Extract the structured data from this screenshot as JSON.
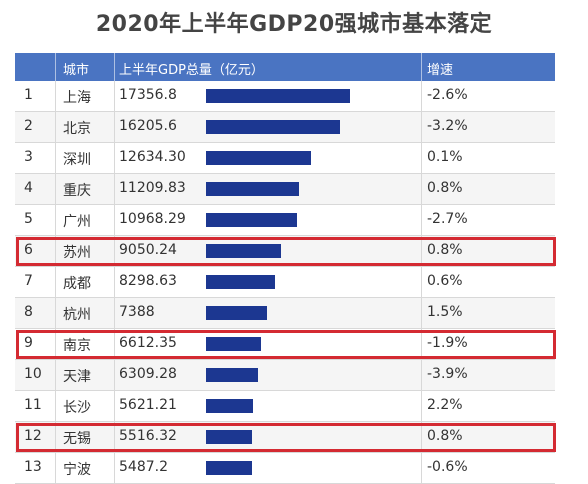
{
  "title": "2020年上半年GDP20强城市基本落定",
  "headers": {
    "rank": "",
    "city": "城市",
    "value": "上半年GDP总量（亿元）",
    "bar": "",
    "growth": "增速"
  },
  "colors": {
    "header_bg": "#4a74c2",
    "bar": "#1c3791",
    "highlight": "#d42a32"
  },
  "highlighted_ranks": [
    6,
    9,
    12
  ],
  "chart_data": {
    "type": "bar",
    "title": "2020年上半年GDP20强城市基本落定",
    "value_label": "上半年GDP总量（亿元）",
    "grid": false,
    "rows": [
      {
        "rank": "1",
        "city": "上海",
        "value_text": "17356.8",
        "value": 17356.8,
        "growth": "-2.6%"
      },
      {
        "rank": "2",
        "city": "北京",
        "value_text": "16205.6",
        "value": 16205.6,
        "growth": "-3.2%"
      },
      {
        "rank": "3",
        "city": "深圳",
        "value_text": "12634.30",
        "value": 12634.3,
        "growth": "0.1%"
      },
      {
        "rank": "4",
        "city": "重庆",
        "value_text": "11209.83",
        "value": 11209.83,
        "growth": "0.8%"
      },
      {
        "rank": "5",
        "city": "广州",
        "value_text": "10968.29",
        "value": 10968.29,
        "growth": "-2.7%"
      },
      {
        "rank": "6",
        "city": "苏州",
        "value_text": "9050.24",
        "value": 9050.24,
        "growth": "0.8%"
      },
      {
        "rank": "7",
        "city": "成都",
        "value_text": "8298.63",
        "value": 8298.63,
        "growth": "0.6%"
      },
      {
        "rank": "8",
        "city": "杭州",
        "value_text": "7388",
        "value": 7388,
        "growth": "1.5%"
      },
      {
        "rank": "9",
        "city": "南京",
        "value_text": "6612.35",
        "value": 6612.35,
        "growth": "-1.9%"
      },
      {
        "rank": "10",
        "city": "天津",
        "value_text": "6309.28",
        "value": 6309.28,
        "growth": "-3.9%"
      },
      {
        "rank": "11",
        "city": "长沙",
        "value_text": "5621.21",
        "value": 5621.21,
        "growth": "2.2%"
      },
      {
        "rank": "12",
        "city": "无锡",
        "value_text": "5516.32",
        "value": 5516.32,
        "growth": "0.8%"
      },
      {
        "rank": "13",
        "city": "宁波",
        "value_text": "5487.2",
        "value": 5487.2,
        "growth": "-0.6%"
      }
    ]
  }
}
